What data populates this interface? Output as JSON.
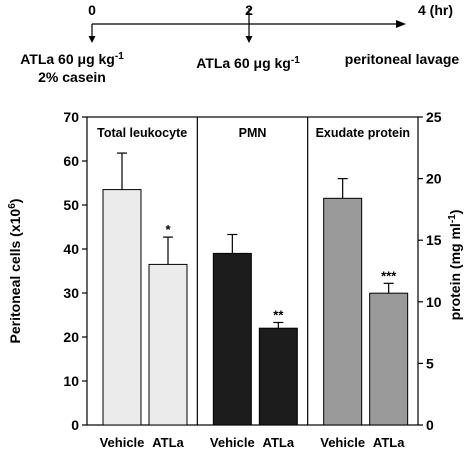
{
  "timeline": {
    "time_points": [
      {
        "t": 0,
        "label": "0"
      },
      {
        "t": 2,
        "label": "2"
      },
      {
        "t": 4,
        "label": "4 (hr)"
      }
    ],
    "annotations": [
      {
        "t": 0,
        "lines": [
          "ATLa 60 μg kg",
          "2% casein"
        ],
        "superscript": "-1"
      },
      {
        "t": 2,
        "lines": [
          "ATLa 60 μg kg"
        ],
        "superscript": "-1"
      },
      {
        "t": 4,
        "lines": [
          "peritoneal lavage"
        ],
        "superscript": ""
      }
    ]
  },
  "chart_data": {
    "type": "bar",
    "left_axis": {
      "label": "Peritoneal cells (x10",
      "label_superscript": "6",
      "label_suffix": ")",
      "range": [
        0,
        70
      ],
      "ticks": [
        0,
        10,
        20,
        30,
        40,
        50,
        60,
        70
      ]
    },
    "right_axis": {
      "label": "protein (mg ml",
      "label_superscript": "-1",
      "label_suffix": ")",
      "range": [
        0,
        25
      ],
      "ticks": [
        0,
        5,
        10,
        15,
        20,
        25
      ]
    },
    "panels": [
      {
        "title": "Total leukocyte",
        "axis": "left",
        "color": "#ebebeb",
        "categories": [
          "Vehicle",
          "ATLa"
        ],
        "values": [
          53.5,
          36.5
        ],
        "errors": [
          8.3,
          6.2
        ],
        "significance": [
          "",
          "*"
        ]
      },
      {
        "title": "PMN",
        "axis": "left",
        "color": "#1c1c1c",
        "categories": [
          "Vehicle",
          "ATLa"
        ],
        "values": [
          39.0,
          22.0
        ],
        "errors": [
          4.3,
          1.3
        ],
        "significance": [
          "",
          "**"
        ]
      },
      {
        "title": "Exudate protein",
        "axis": "right",
        "color": "#9a9a9a",
        "categories": [
          "Vehicle",
          "ATLa"
        ],
        "values": [
          18.4,
          10.7
        ],
        "errors": [
          1.6,
          0.8
        ],
        "significance": [
          "",
          "***"
        ]
      }
    ]
  }
}
